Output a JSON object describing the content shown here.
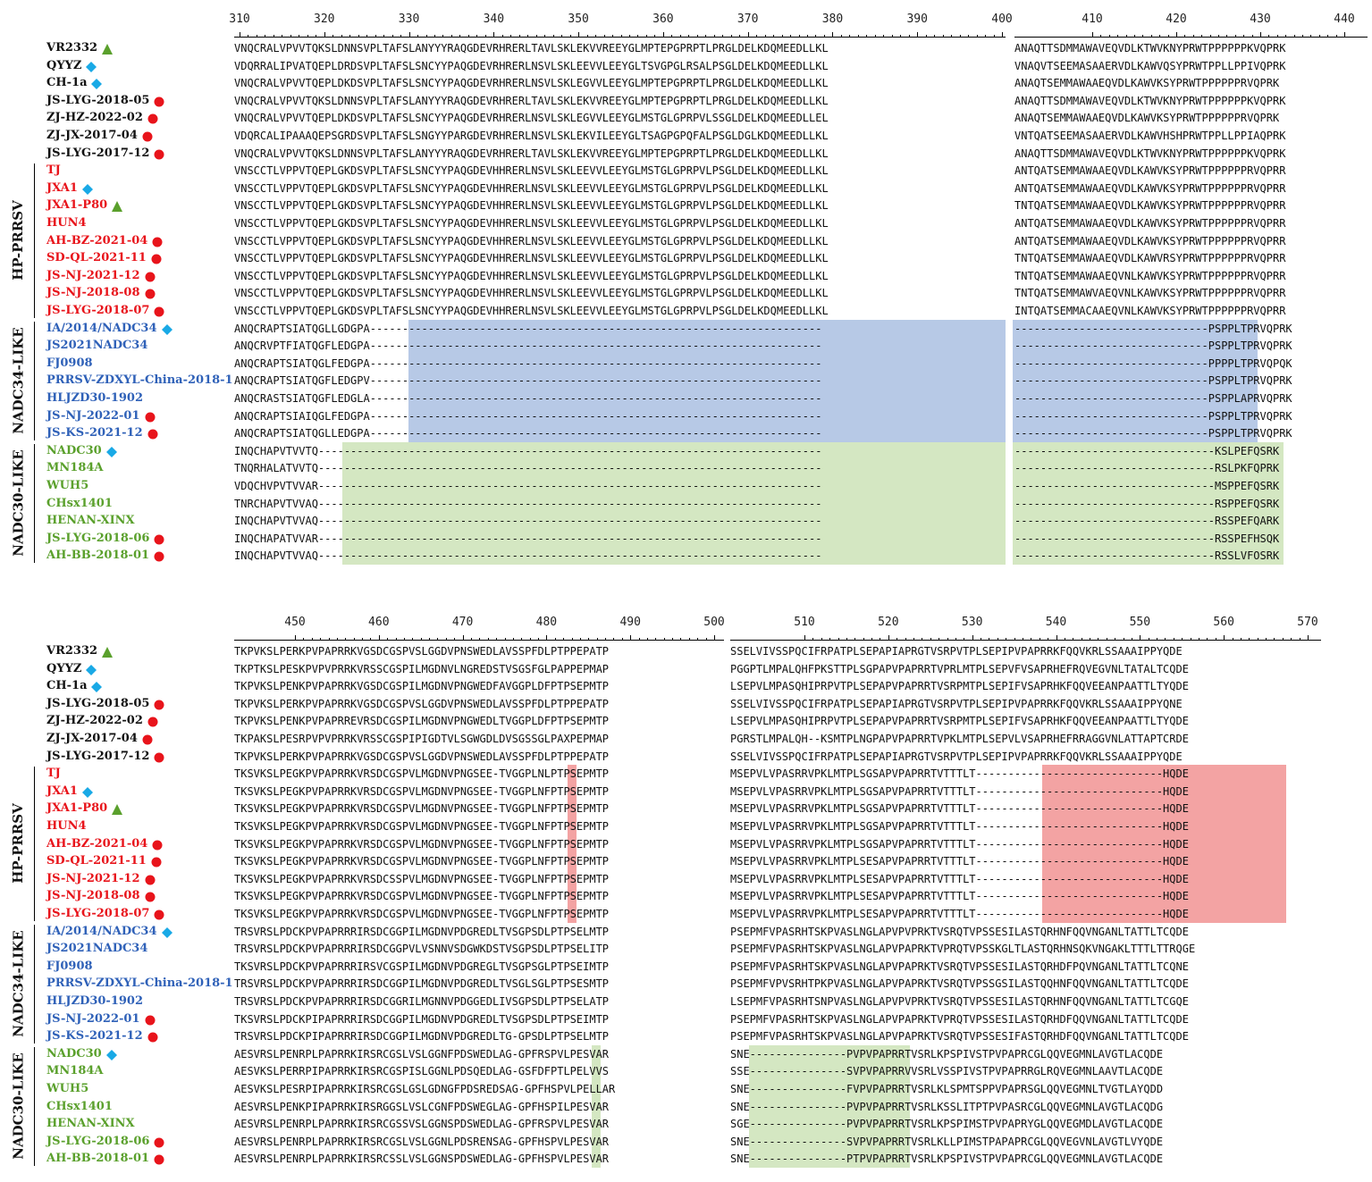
{
  "colors": {
    "black": "#111111",
    "red": "#e8141b",
    "blue": "#2f61b8",
    "green": "#5aa02c",
    "triangle": "#5aa02c",
    "diamond": "#19a9e6",
    "circle": "#e8141b",
    "hl_blue": "#b7c9e6",
    "hl_green": "#d4e7c2",
    "hl_red": "#f3a3a3"
  },
  "groups": {
    "hp": "HP-PRRSV",
    "nadc34": "NADC34-LIKE",
    "nadc30": "NADC30-LIKE"
  },
  "strains": [
    {
      "name": "VR2332",
      "color": "black",
      "mark": "triangle"
    },
    {
      "name": "QYYZ",
      "color": "black",
      "mark": "diamond"
    },
    {
      "name": "CH-1a",
      "color": "black",
      "mark": "diamond"
    },
    {
      "name": "JS-LYG-2018-05",
      "color": "black",
      "mark": "circle"
    },
    {
      "name": "ZJ-HZ-2022-02",
      "color": "black",
      "mark": "circle"
    },
    {
      "name": "ZJ-JX-2017-04",
      "color": "black",
      "mark": "circle"
    },
    {
      "name": "JS-LYG-2017-12",
      "color": "black",
      "mark": "circle"
    },
    {
      "name": "TJ",
      "color": "red",
      "mark": ""
    },
    {
      "name": "JXA1",
      "color": "red",
      "mark": "diamond"
    },
    {
      "name": "JXA1-P80",
      "color": "red",
      "mark": "triangle"
    },
    {
      "name": "HUN4",
      "color": "red",
      "mark": ""
    },
    {
      "name": "AH-BZ-2021-04",
      "color": "red",
      "mark": "circle"
    },
    {
      "name": "SD-QL-2021-11",
      "color": "red",
      "mark": "circle"
    },
    {
      "name": "JS-NJ-2021-12",
      "color": "red",
      "mark": "circle"
    },
    {
      "name": "JS-NJ-2018-08",
      "color": "red",
      "mark": "circle"
    },
    {
      "name": "JS-LYG-2018-07",
      "color": "red",
      "mark": "circle"
    },
    {
      "name": "IA/2014/NADC34",
      "color": "blue",
      "mark": "diamond"
    },
    {
      "name": "JS2021NADC34",
      "color": "blue",
      "mark": ""
    },
    {
      "name": "FJ0908",
      "color": "blue",
      "mark": ""
    },
    {
      "name": "PRRSV-ZDXYL-China-2018-1",
      "color": "blue",
      "mark": ""
    },
    {
      "name": "HLJZD30-1902",
      "color": "blue",
      "mark": ""
    },
    {
      "name": "JS-NJ-2022-01",
      "color": "blue",
      "mark": "circle"
    },
    {
      "name": "JS-KS-2021-12",
      "color": "blue",
      "mark": "circle"
    },
    {
      "name": "NADC30",
      "color": "green",
      "mark": "diamond"
    },
    {
      "name": "MN184A",
      "color": "green",
      "mark": ""
    },
    {
      "name": "WUH5",
      "color": "green",
      "mark": ""
    },
    {
      "name": "CHsx1401",
      "color": "green",
      "mark": ""
    },
    {
      "name": "HENAN-XINX",
      "color": "green",
      "mark": ""
    },
    {
      "name": "JS-LYG-2018-06",
      "color": "green",
      "mark": "circle"
    },
    {
      "name": "AH-BB-2018-01",
      "color": "green",
      "mark": "circle"
    }
  ],
  "top": {
    "ruler_a": [
      "310",
      "320",
      "330",
      "340",
      "350",
      "360",
      "370",
      "380",
      "390",
      "400"
    ],
    "ruler_b": [
      "410",
      "420",
      "430",
      "440"
    ],
    "seq_a": [
      "VNQCRALVPVVTQKSLDNNSVPLTAFSLANYYYRAQGDEVRHRERLTAVLSKLEKVVREEYGLMPTEPGPRPTLPRGLDELKDQMEEDLLKL",
      "VDQRRALIPVATQEPLDRDSVPLTAFSLSNCYYPAQGDEVRHRERLNSVLSKLEEVVLEEYGLTSVGPGLRSALPSGLDELKDQMEEDLLKL",
      "VNQCRALVPVVTQEPLDKDSVPLTAFSLSNCYYPAQGDEVRHRERLNSVLSKLEGVVLEEYGLMPTEPGPRPTLPRGLDELKDQMEEDLLKL",
      "VNQCRALVPVVTQKSLDNNSVPLTAFSLANYYYRAQGDEVRHRERLTAVLSKLEKVVREEYGLMPTEPGPRPTLPRGLDELKDQMEEDLLKL",
      "VNQCRALVPVVTQEPLDKDSVPLTAFSLSNCYYPAQGDEVRHRERLNSVLSKLEGVVLEEYGLMSTGLGPRPVLSSGLDELKDQMEEDLLEL",
      "VDQRCALIPAAAQEPSGRDSVPLTAFSLSNGYYPARGDEVRHRERLNSVLSKLEKVILEEYGLTSAGPGPQFALPSGLDGLKDQMEEDLLKL",
      "VNQCRALVPVVTQKSLDNNSVPLTAFSLANYYYRAQGDEVRHRERLTAVLSKLEKVVREEYGLMPTEPGPRPTLPRGLDELKDQMEEDLLKL",
      "VNSCCTLVPPVTQEPLGKDSVPLTAFSLSNCYYPAQGDEVHHRERLNSVLSKLEEVVLEEYGLMSTGLGPRPVLPSGLDELKDQMEEDLLKL",
      "VNSCCTLVPPVTQEPLGKDSVPLTAFSLSNCYYPAQGDEVHHRERLNSVLSKLEEVVLEEYGLMSTGLGPRPVLPSGLDELKDQMEEDLLKL",
      "VNSCCTLVPPVTQEPLGKDSVPLTAFSLSNCYYPAQGDEVHHRERLNSVLSKLEEVVLEEYGLMSTGLGPRPVLPSGLDELKDQMEEDLLKL",
      "VNSCCTLVPPVTQEPLGKDSVPLTAFSLSNCYYPAQGDEVHHRERLNSVLSKLEEVVLEEYGLMSTGLGPRPVLPSGLDELKDQMEEDLLKL",
      "VNSCCTLVPPVTQEPLGKDSVPLTAFSLSNCYYPAQGDEVHHRERLNSVLSKLEEVVLEEYGLMSTGLGPRPVLPSGLDELKDQMEEDLLKL",
      "VNSCCTLVPPVTQEPLGKDSVPLTAFSLSNCYYPAQGDEVHHRERLNSVLSKLEEVVLEEYGLMSTGLGPRPVLPSGLDELKDQMEEDLLKL",
      "VNSCCTLVPPVTQEPLGKDSVPLTAFSLSNCYYPAQGDEVHHRERLNSVLSKLEEVVLEEYGLMSTGLGPRPVLPSGLDELKDQMEEDLLKL",
      "VNSCCTLVPPVTQEPLGKDSVPLTAFSLSNCYYPAQGDEVHHRERLNSVLSKLEEVVLEEYGLMSTGLGPRPVLPSGLDELKDQMEEDLLKL",
      "VNSCCTLVPPVTQEPLGKDSVPLTAFSLSNCYYPAQGDEVHHRERLNSVLSKLEEVVLEEYGLMSTGLGPRPVLPSGLDELKDQMEEDLLKL",
      "ANQCRAPTSIATQGLLGDGPA----------------------------------------------------------------------",
      "ANQCRVPTFIATQGFLEDGPA----------------------------------------------------------------------",
      "ANQCRAPTSIATQGLFEDGPA----------------------------------------------------------------------",
      "ANQCRAPTSIATQGFLEDGPV----------------------------------------------------------------------",
      "ANQCRASTSIATQGFLEDGLA----------------------------------------------------------------------",
      "ANQCRAPTSIAIQGLFEDGPA----------------------------------------------------------------------",
      "ANQCRAPTSIATQGLLEDGPA----------------------------------------------------------------------",
      "INQCHAPVTVVTQ------------------------------------------------------------------------------",
      "TNQRHALATVVTQ------------------------------------------------------------------------------",
      "VDQCHVPVTVVAR------------------------------------------------------------------------------",
      "TNRCHAPVTVVAQ------------------------------------------------------------------------------",
      "INQCHAPVTVVAQ------------------------------------------------------------------------------",
      "INQCHAPATVVAR------------------------------------------------------------------------------",
      "INQCHAPVTVVAQ------------------------------------------------------------------------------"
    ],
    "seq_b": [
      "ANAQTTSDMMAWAVEQVDLKTWVKNYPRWTPPPPPPKVQPRK",
      "VNAQVTSEEMASAAERVDLKAWVQSYPRWTPPLLPPIVQPRK",
      "ANAQTSEMMAWAAEQVDLKAWVKSYPRWTPPPPPPRVQPRK",
      "ANAQTTSDMMAWAVEQVDLKTWVKNYPRWTPPPPPPKVQPRK",
      "ANAQTSEMMAWAAEQVDLKAWVKSYPRWTPPPPPPRVQPRK",
      "VNTQATSEEMASAAERVDLKAWVHSHPRWTPPLLPPIAQPRK",
      "ANAQTTSDMMAWAVEQVDLKTWVKNYPRWTPPPPPPKVQPRK",
      "ANTQATSEMMAWAAEQVDLKAWVKSYPRWTPPPPPPRVQPRR",
      "ANTQATSEMMAWAAEQVDLKAWVKSYPRWTPPPPPPRVQPRR",
      "TNTQATSEMMAWAAEQVDLKAWVKSYPRWTPPPPPPRVQPRR",
      "ANTQATSEMMAWAAEQVDLKAWVKSYPRWTPPPPPPRVQPRR",
      "ANTQATSEMMAWAAEQVDLKAWVKSYPRWTPPPPPPRVQPRR",
      "TNTQATSEMMAWAAEQVDLKAWVRSYPRWTPPPPPPRVQPRR",
      "TNTQATSEMMAWAAEQVNLKAWVKSYPRWTPPPPPPRVQPRR",
      "TNTQATSEMMAWVAEQVNLKAWVKSYPRWTPPPPPPRVQPRR",
      "INTQATSEMMACAAEQVNLKAWVKSYPRWTPPPPPPRVQPRR",
      "------------------------------PSPPLTPRVQPRK",
      "------------------------------PSPPLTPRVQPRK",
      "------------------------------PPPPLTPRVQPQK",
      "------------------------------PSPPLTPRVQPRK",
      "------------------------------PSPPLAPRVQPRK",
      "------------------------------PSPPLTPRVQPRK",
      "------------------------------PSPPLTPRVQPRK",
      "-------------------------------KSLPEFQSRK",
      "-------------------------------RSLPKFQPRK",
      "-------------------------------MSPPEFQSRK",
      "-------------------------------RSPPEFQSRK",
      "-------------------------------RSSPEFQARK",
      "-------------------------------RSSPEFHSQK",
      "-------------------------------RSSLVFOSRK"
    ]
  },
  "bottom": {
    "ruler_a": [
      "450",
      "460",
      "470",
      "480",
      "490",
      "500"
    ],
    "ruler_b": [
      "510",
      "520",
      "530",
      "540",
      "550",
      "560",
      "570"
    ],
    "seq_a": [
      "TKPVKSLPERKPVPAPRRKVGSDCGSPVSLGGDVPNSWEDLAVSSPFDLPTPPEPATP",
      "TKPTKSLPESKPVPVPRRKVRSSCGSPILMGDNVLNGREDSTVSGSFGLPAPPEPMAP",
      "TKPVKSLPENKPVPAPRRKVGSDCGSPILMGDNVPNGWEDFAVGGPLDFPTPSEPMTP",
      "TKPVKSLPERKPVPAPRRKVGSDCGSPVSLGGDVPNSWEDLAVSSPFDLPTPPEPATP",
      "TKPVKSLPENKPVPAPRREVRSDCGSPILMGDNVPNGWEDLTVGGPLDFPTPSEPMTP",
      "TKPAKSLPESRPVPVPRRKVRSSCGSPIPIGDTVLSGWGDLDVSGSSGLPAXPEPMAP",
      "TKPVKSLPERKPVPAPRRKVGSDCGSPVSLGGDVPNSWEDLAVSSPFDLPTPPEPATP",
      "TKSVKSLPEGKPVPAPRRKVRSDCGSPVLMGDNVPNGSEE-TVGGPLNLPTPSEPMTP",
      "TKSVKSLPEGKPVPAPRRKVRSDCGSPVLMGDNVPNGSEE-TVGGPLNFPTPSEPMTP",
      "TKSVKSLPEGKPVPAPRRKVRSDCGSPVLMGDNVPNGSEE-TVGGPLNFPTPSEPMTP",
      "TKSVKSLPEGKPVPAPRRKVRSDCGSPVLMGDNVPNGSEE-TVGGPLNFPTPSEPMTP",
      "TKSVKSLPEGKPVPAPRRKVRSDCGSPVLMGDNVPNGSEE-TVGGPLNFPTPSEPMTP",
      "TKSVKSLPEGKPVPAPRRKVRSDCGSPVLMGDNVPNGSEE-TVGGPLNFPTPSEPMTP",
      "TKSVKSLPEGKPVPAPRRKVRSDCSSPVLMGDNVPNGSEE-TVGGPLNFPTPSEPMTP",
      "TKSVKSLPEGKPVPAPRRKVRSDCGSPVLMGDNVPNGSEE-TVGGPLNFPTPSEPMTP",
      "TKSVKSLPEGKPVPAPRRKVRSDCGSPVLMGDNVPNGSEE-TVGGPLNFPTPSEPMTP",
      "TRSVRSLPDCKPVPAPRRRIRSDCGGPILMGDNVPDGREDLTVSGPSDLPTPSELMTP",
      "TRSVRSLPDCKPVPAPRRRIRSDCGGPVLVSNNVSDGWKDSTVSGPSDLPTPSELITP",
      "TKSVRSLPDCKPVPAPRRRIRSVCGSPILMGDNVPDGREGLTVSGPSGLPTPSEIMTP",
      "TRSVRSLPDCKPVPAPRRRIRSDCGGPILMGDNVPDGREDLTVSGLSGLPTPSESMTP",
      "TRSVRSLPDCKPVPAPRRRIRSDCGGRILMGNNVPDGGEDLIVSGPSDLPTPSELATP",
      "TKSVRSLPDCKPIPAPRRRIRSDCGGPILMGDNVPDGREDLTVSGPSDLPTPSEIMTP",
      "TRSVRSLPDCKPIPAPRRRIRSDCGGPILMGDNVPDGREDLTG-GPSDLPTPSELMTP",
      "AESVRSLPENRPLPAPRRKIRSRCGSLVSLGGNFPDSWEDLAG-GPFRSPVLPESVAR",
      "AESVKSLPERRPIPAPRRKIRSRCGSPISLGGNLPDSQEDLAG-GSFDFPTLPELVVS",
      "AESVKSLPESRPIPAPRRKIRSRCGSLGSLGDNGFPDSREDSAG-GPFHSPVLPELLAR",
      "AESVRSLPENKPIPAPRRKIRSRGGSLVSLCGNFPDSWEGLAG-GPFHSPILPESVAR",
      "AESVRSLPENRPLPAPRRKIRSRCGSSVSLGGNSPDSWEDLAG-GPFRSPVLPESVAR",
      "AESVRSLPENRPLPAPRRKIRSRCGSLVSLGGNLPDSRENSAG-GPFHSPVLPESVAR",
      "AESVRSLPENRPLPAPRRKIRSRCSSLVSLGGNSPDSWEDLAG-GPFHSPVLPESVAR"
    ],
    "seq_b": [
      "SSELVIVSSPQCIFRPATPLSEPAPIAPRGTVSRPVTPLSEPIPVPAPRRKFQQVKRLSSAAAIPPYQDE",
      "PGGPTLMPALQHFPKSTTPLSGPAPVPAPRRTVPRLMTPLSEPVFVSAPRHEFRQVEGVNLTATALTCQDE",
      "LSEPVLMPASQHIPRPVTPLSEPAPVPAPRRTVSRPMTPLSEPIFVSAPRHKFQQVEEANPAATTLTYQDE",
      "SSELVIVSSPQCIFRPATPLSEPAPIAPRGTVSRPVTPLSEPIPVPAPRRKFQQVKRLSSAAAIPPYQNE",
      "LSEPVLMPASQHIPRPVTPLSEPAPVPAPRRTVSRPMTPLSEPIFVSAPRHKFQQVEEANPAATTLTYQDE",
      "PGRSTLMPALQH--KSMTPLNGPAPVPAPRRTVPKLMTPLSEPVLVSAPRHEFRRAGGVNLATTAPTCRDE",
      "SSELVIVSSPQCIFRPATPLSEPAPIAPRGTVSRPVTPLSEPIPVPAPRRKFQQVKRLSSAAAIPPYQDE",
      "MSEPVLVPASRRVPKLMTPLSGSAPVPAPRRTVTTTLT-----------------------------HQDE",
      "MSEPVLVPASRRVPKLMTPLSGSAPVPAPRRTVTTTLT-----------------------------HQDE",
      "MSEPVLVPASRRVPKLMTPLSGSAPVPAPRRTVTTTLT-----------------------------HQDE",
      "MSEPVLVPASRRVPKLMTPLSGSAPVPAPRRTVTTTLT-----------------------------HQDE",
      "MSEPVLVPASRRVPKLMTPLSGSAPVPAPRRTVTTTLT-----------------------------HQDE",
      "MSEPVLVPASRRVPKLMTPLSESAPVPAPRRTVTTTLT-----------------------------HQDE",
      "MSEPVLVPASRRVPKLMTPLSESAPVPAPRRTVTTTLT-----------------------------HQDE",
      "MSEPVLVPASRRVPKLMTPLSESAPVPAPRRTVTTTLT-----------------------------HQDE",
      "MSEPVLVPASRRVPKLMTPLSESAPVPAPRRTVTTTLT-----------------------------HQDE",
      "PSEPMFVPASRHTSKPVASLNGLAPVPVPRKTVSRQTVPSSESILASTQRHNFQQVNGANLTATTLTCQDE",
      "PSEPMFVPASRHTSKPVASLNGLAPVPAPRKTVPRQTVPSSKGLTLASTQRHNSQKVNGAKLTTTLTTRQGE",
      "PSEPMFVPASRHTSKPVASLNGLAPVPAPRKTVSRQTVPSSESILASTQRHDFPQVNGANLTATTLTCQNE",
      "PSEPMFVPVSRHTPKPVASLNGLAPVPAPRKTVSRQTVPSSGSILASTQQHNFQQVNGANLTATTLTCQDE",
      "LSEPMFVPASRHTSNPVASLNGLAPVPVPRKTVSRQTVPSSESILASTQRHNFQQVNGANLTATTLTCGQE",
      "PSEPMFVPASRHTSKPVASLNGLAPVPAPRKTVPRQTVPSSESILASTQRHDFQQVNGANLTATTLTCQDE",
      "PSEPMFVPASRHTSKPVASLNGLAPVPAPRKTVSRQTVPSSESIFASTQRHDFQQVNGANLTATTLTCQDE",
      "SNE---------------PVPVPAPRRTVSRLKPSPIVSTPVPAPRCGLQQVEGMNLAVGTLACQDE",
      "SSE---------------SVPVPAPRRVVSRLVSSPIVSTPVPAPRRGLRQVEGMNLAAVTLACQDE",
      "SNE---------------FVPVPAPRRTVSRLKLSPMTSPPVPAPRSGLQQVEGMNLTVGTLAYQDD",
      "SNE---------------PVPVPAPRRTVSRLKSSLITPTPVPASRCGLQQVEGMNLAVGTLACQDG",
      "SGE---------------PVPVPAPRRTVSRLKPSPIMSTPVPAPRYGLQQVEGMDLAVGTLACQDE",
      "SNE---------------SVPVPAPRRTVSRLKLLPIMSTPAPAPRCGLQQVEGVNLAVGTLVYQDE",
      "SNE---------------PTPVPAPRRTVSRLKPSPIVSTPVPAPRCGLQQVEGMNLAVGTLACQDE"
    ]
  }
}
